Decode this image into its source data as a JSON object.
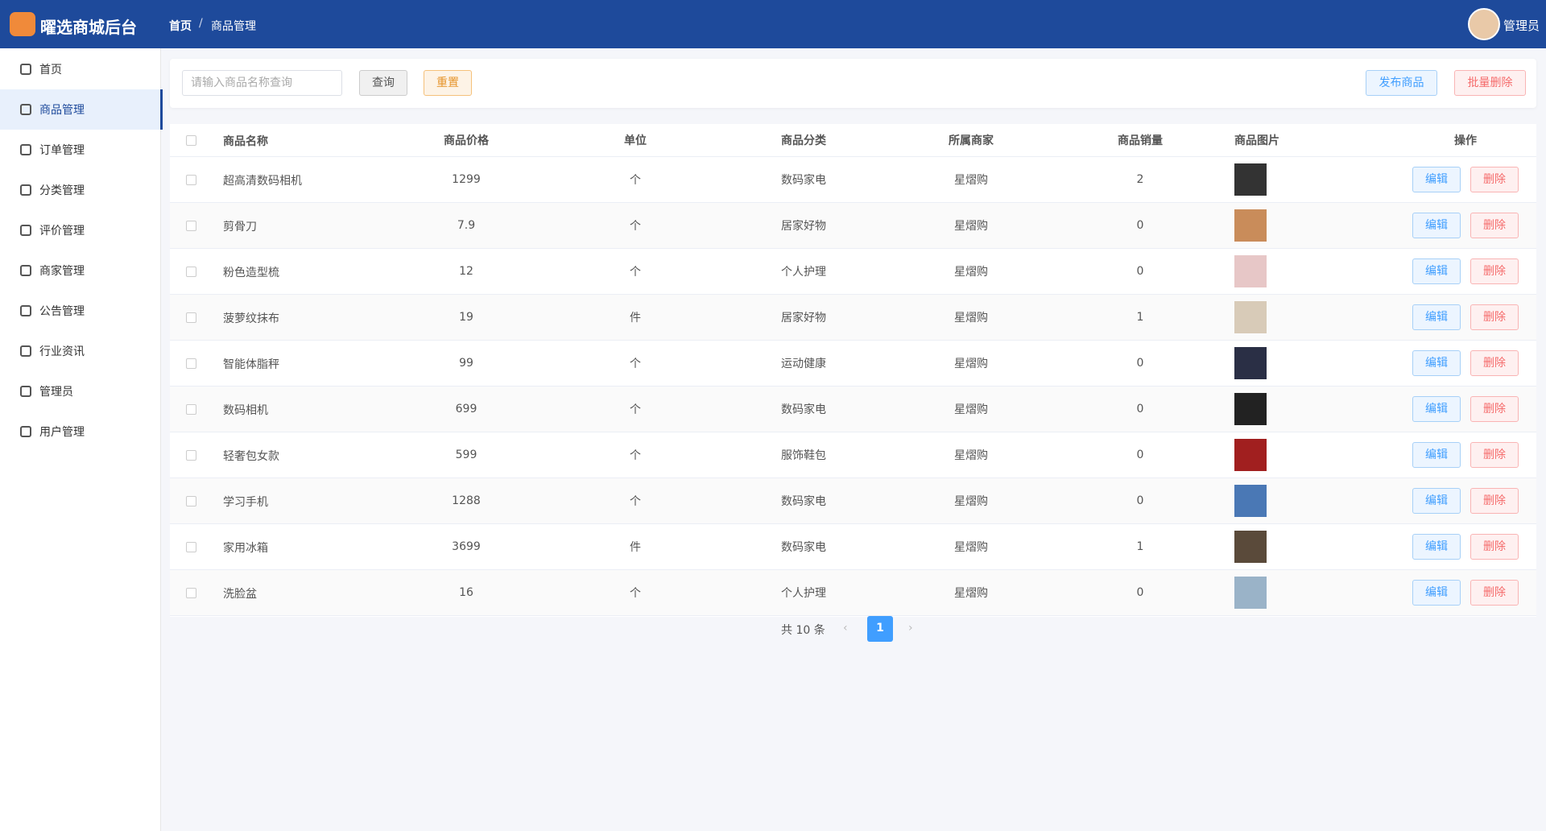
{
  "header": {
    "title": "曜选商城后台",
    "breadcrumb": [
      "首页",
      "商品管理"
    ],
    "user": "管理员"
  },
  "menu": [
    "首页",
    "商品管理",
    "订单管理",
    "分类管理",
    "评价管理",
    "商家管理",
    "公告管理",
    "行业资讯",
    "管理员",
    "用户管理"
  ],
  "toolbar": {
    "search_placeholder": "请输入商品名称查询",
    "query": "查询",
    "reset": "重置",
    "publish": "发布商品",
    "batch_delete": "批量删除"
  },
  "table": {
    "columns": [
      "商品名称",
      "商品价格",
      "单位",
      "商品分类",
      "所属商家",
      "商品销量",
      "商品图片",
      "操作"
    ],
    "rows": [
      [
        "超高清数码相机",
        1299,
        "个",
        "数码家电",
        "星熠购",
        2
      ],
      [
        "剪骨刀",
        7.9,
        "个",
        "居家好物",
        "星熠购",
        0
      ],
      [
        "粉色造型梳",
        12,
        "个",
        "个人护理",
        "星熠购",
        0
      ],
      [
        "菠萝纹抹布",
        19,
        "件",
        "居家好物",
        "星熠购",
        1
      ],
      [
        "智能体脂秤",
        99,
        "个",
        "运动健康",
        "星熠购",
        0
      ],
      [
        "数码相机",
        699,
        "个",
        "数码家电",
        "星熠购",
        0
      ],
      [
        "轻奢包女款",
        599,
        "个",
        "服饰鞋包",
        "星熠购",
        0
      ],
      [
        "学习手机",
        1288,
        "个",
        "数码家电",
        "星熠购",
        0
      ],
      [
        "家用冰箱",
        3699,
        "件",
        "数码家电",
        "星熠购",
        1
      ],
      [
        "洗脸盆",
        16,
        "个",
        "个人护理",
        "星熠购",
        0
      ]
    ],
    "edit": "编辑",
    "delete": "删除"
  },
  "pagination": {
    "total": "共 10 条",
    "page": "1"
  }
}
